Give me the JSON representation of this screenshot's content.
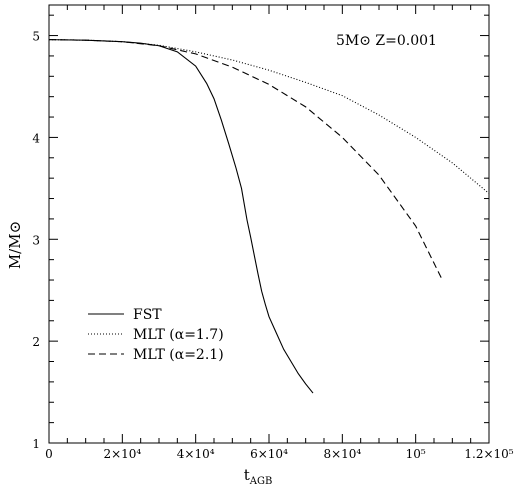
{
  "chart_data": {
    "type": "line",
    "title": "",
    "annotation": "5M⊙ Z=0.001",
    "xlabel": "t",
    "xlabel_sub": "AGB",
    "ylabel": "M/M⊙",
    "xlim": [
      0,
      120000
    ],
    "ylim": [
      1,
      5.3
    ],
    "grid": false,
    "legend_position": "bottom-left",
    "x_ticks": [
      {
        "value": 0,
        "label": "0"
      },
      {
        "value": 20000,
        "label": "2×10⁴"
      },
      {
        "value": 40000,
        "label": "4×10⁴"
      },
      {
        "value": 60000,
        "label": "6×10⁴"
      },
      {
        "value": 80000,
        "label": "8×10⁴"
      },
      {
        "value": 100000,
        "label": "10⁵"
      },
      {
        "value": 120000,
        "label": "1.2×10⁵"
      }
    ],
    "y_ticks": [
      {
        "value": 1,
        "label": "1"
      },
      {
        "value": 2,
        "label": "2"
      },
      {
        "value": 3,
        "label": "3"
      },
      {
        "value": 4,
        "label": "4"
      },
      {
        "value": 5,
        "label": "5"
      }
    ],
    "series": [
      {
        "name": "FST",
        "dash": "solid",
        "color": "#000000",
        "points": [
          [
            0,
            4.96
          ],
          [
            10000,
            4.955
          ],
          [
            20000,
            4.94
          ],
          [
            25000,
            4.925
          ],
          [
            30000,
            4.9
          ],
          [
            35000,
            4.84
          ],
          [
            40000,
            4.7
          ],
          [
            43000,
            4.53
          ],
          [
            45000,
            4.38
          ],
          [
            47000,
            4.17
          ],
          [
            49000,
            3.94
          ],
          [
            51000,
            3.7
          ],
          [
            52500,
            3.5
          ],
          [
            54000,
            3.19
          ],
          [
            55000,
            3.02
          ],
          [
            56000,
            2.84
          ],
          [
            57000,
            2.66
          ],
          [
            58000,
            2.49
          ],
          [
            59000,
            2.36
          ],
          [
            60000,
            2.24
          ],
          [
            62000,
            2.08
          ],
          [
            64000,
            1.92
          ],
          [
            66000,
            1.8
          ],
          [
            68000,
            1.68
          ],
          [
            70000,
            1.58
          ],
          [
            72000,
            1.49
          ]
        ]
      },
      {
        "name": "MLT (α=1.7)",
        "dash": "dotted",
        "color": "#000000",
        "points": [
          [
            0,
            4.96
          ],
          [
            10000,
            4.955
          ],
          [
            20000,
            4.94
          ],
          [
            30000,
            4.905
          ],
          [
            40000,
            4.84
          ],
          [
            50000,
            4.76
          ],
          [
            60000,
            4.66
          ],
          [
            70000,
            4.54
          ],
          [
            80000,
            4.41
          ],
          [
            90000,
            4.22
          ],
          [
            100000,
            4.0
          ],
          [
            110000,
            3.75
          ],
          [
            120000,
            3.45
          ]
        ]
      },
      {
        "name": "MLT (α=2.1)",
        "dash": "dashed",
        "color": "#000000",
        "points": [
          [
            0,
            4.96
          ],
          [
            10000,
            4.955
          ],
          [
            20000,
            4.94
          ],
          [
            30000,
            4.9
          ],
          [
            40000,
            4.82
          ],
          [
            50000,
            4.69
          ],
          [
            60000,
            4.52
          ],
          [
            70000,
            4.3
          ],
          [
            80000,
            4.0
          ],
          [
            90000,
            3.63
          ],
          [
            100000,
            3.13
          ],
          [
            107000,
            2.62
          ]
        ]
      }
    ]
  }
}
